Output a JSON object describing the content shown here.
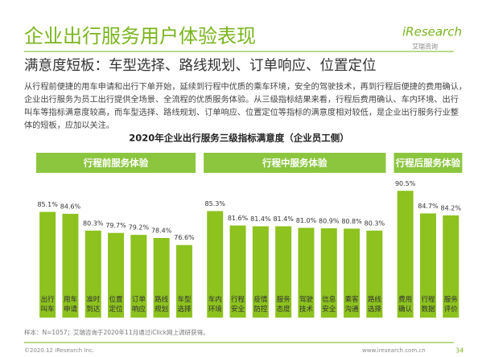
{
  "header": {
    "title": "企业出行服务用户体验表现",
    "subtitle": "满意度短板：车型选择、路线规划、订单响应、位置定位",
    "logo": "iResearch",
    "logo_sub": "艾瑞咨询",
    "paragraph": [
      "从行程前便捷的用车申请和出行下单开始，延续到行程中优质的乘车环境，安全的驾驶技术，再到行程后便捷的费用确认，",
      "企业出行服务为员工出行提供全场景、全流程的优质服务体验。从三级指标结果来看，行程后费用确认、车内环境、出行",
      "叫车等指标满意度较高，而车型选择、路线规划、订单响应、位置定位等指标的满意度相对较低，是企业出行服务行业整",
      "体的短板，应加以关注。"
    ]
  },
  "chart_data": {
    "type": "bar",
    "title": "2020年企业出行服务三级指标满意度（企业员工侧）",
    "color": "#8dc21f",
    "ylim": [
      58,
      92
    ],
    "groups": [
      {
        "name": "行程前服务体验",
        "categories": [
          "出行叫车",
          "用车申请",
          "准时到达",
          "位置定位",
          "订单响应",
          "路线规划",
          "车型选择"
        ],
        "values": [
          85.1,
          84.6,
          80.3,
          79.7,
          79.2,
          78.4,
          76.6
        ],
        "value_labels": [
          "85.1%",
          "84.6%",
          "80.3%",
          "79.7%",
          "79.2%",
          "78.4%",
          "76.6%"
        ]
      },
      {
        "name": "行程中服务体验",
        "categories": [
          "车内环境",
          "行程安全",
          "疫情防控",
          "服务态度",
          "驾驶技术",
          "信息安全",
          "乘客沟通",
          "路线选择"
        ],
        "values": [
          85.3,
          81.6,
          81.4,
          81.4,
          81.0,
          80.9,
          80.8,
          80.3
        ],
        "value_labels": [
          "85.3%",
          "81.6%",
          "81.4%",
          "81.4%",
          "81.0%",
          "80.9%",
          "80.8%",
          "80.3%"
        ]
      },
      {
        "name": "行程后服务体验",
        "categories": [
          "费用确认",
          "行程数据",
          "服务评价"
        ],
        "values": [
          90.5,
          84.7,
          84.2
        ],
        "value_labels": [
          "90.5%",
          "84.7%",
          "84.2%"
        ]
      }
    ]
  },
  "footer": {
    "note": "样本：N=1057；艾瑞咨询于2020年11月通过iClick网上调研获得。",
    "copyright": "©2020.12 iResearch Inc.",
    "url": "www.iresearch.com.cn",
    "page": "34"
  }
}
